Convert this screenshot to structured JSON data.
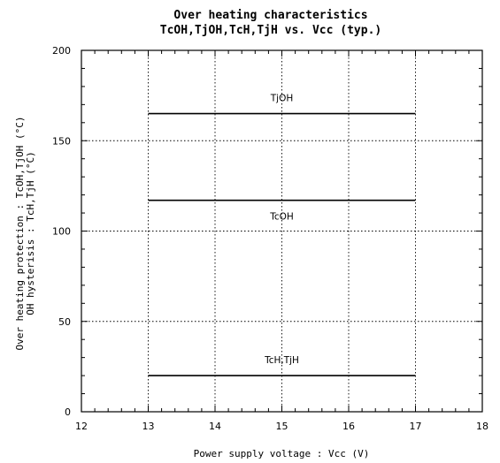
{
  "chart_data": {
    "type": "line",
    "title_line1": "Over heating characteristics",
    "title_line2": "TcOH,TjOH,TcH,TjH vs. Vcc (typ.)",
    "xlabel": "Power supply voltage : Vcc (V)",
    "ylabel_line1": "Over heating protection : TcOH,TjOH (°C)",
    "ylabel_line2": "OH hysterisis : TcH,TjH (°C)",
    "xlim": [
      12,
      18
    ],
    "ylim": [
      0,
      200
    ],
    "x_ticks": [
      12,
      13,
      14,
      15,
      16,
      17,
      18
    ],
    "y_ticks": [
      0,
      50,
      100,
      150,
      200
    ],
    "x_minor_per_major": 5,
    "y_minor_per_major": 5,
    "grid": true,
    "series": [
      {
        "name": "TjOH",
        "x": [
          13,
          17
        ],
        "y": [
          165,
          165
        ]
      },
      {
        "name": "TcOH",
        "x": [
          13,
          17
        ],
        "y": [
          117,
          117
        ]
      },
      {
        "name": "TcH,TjH",
        "x": [
          13,
          17
        ],
        "y": [
          20,
          20
        ]
      }
    ]
  }
}
